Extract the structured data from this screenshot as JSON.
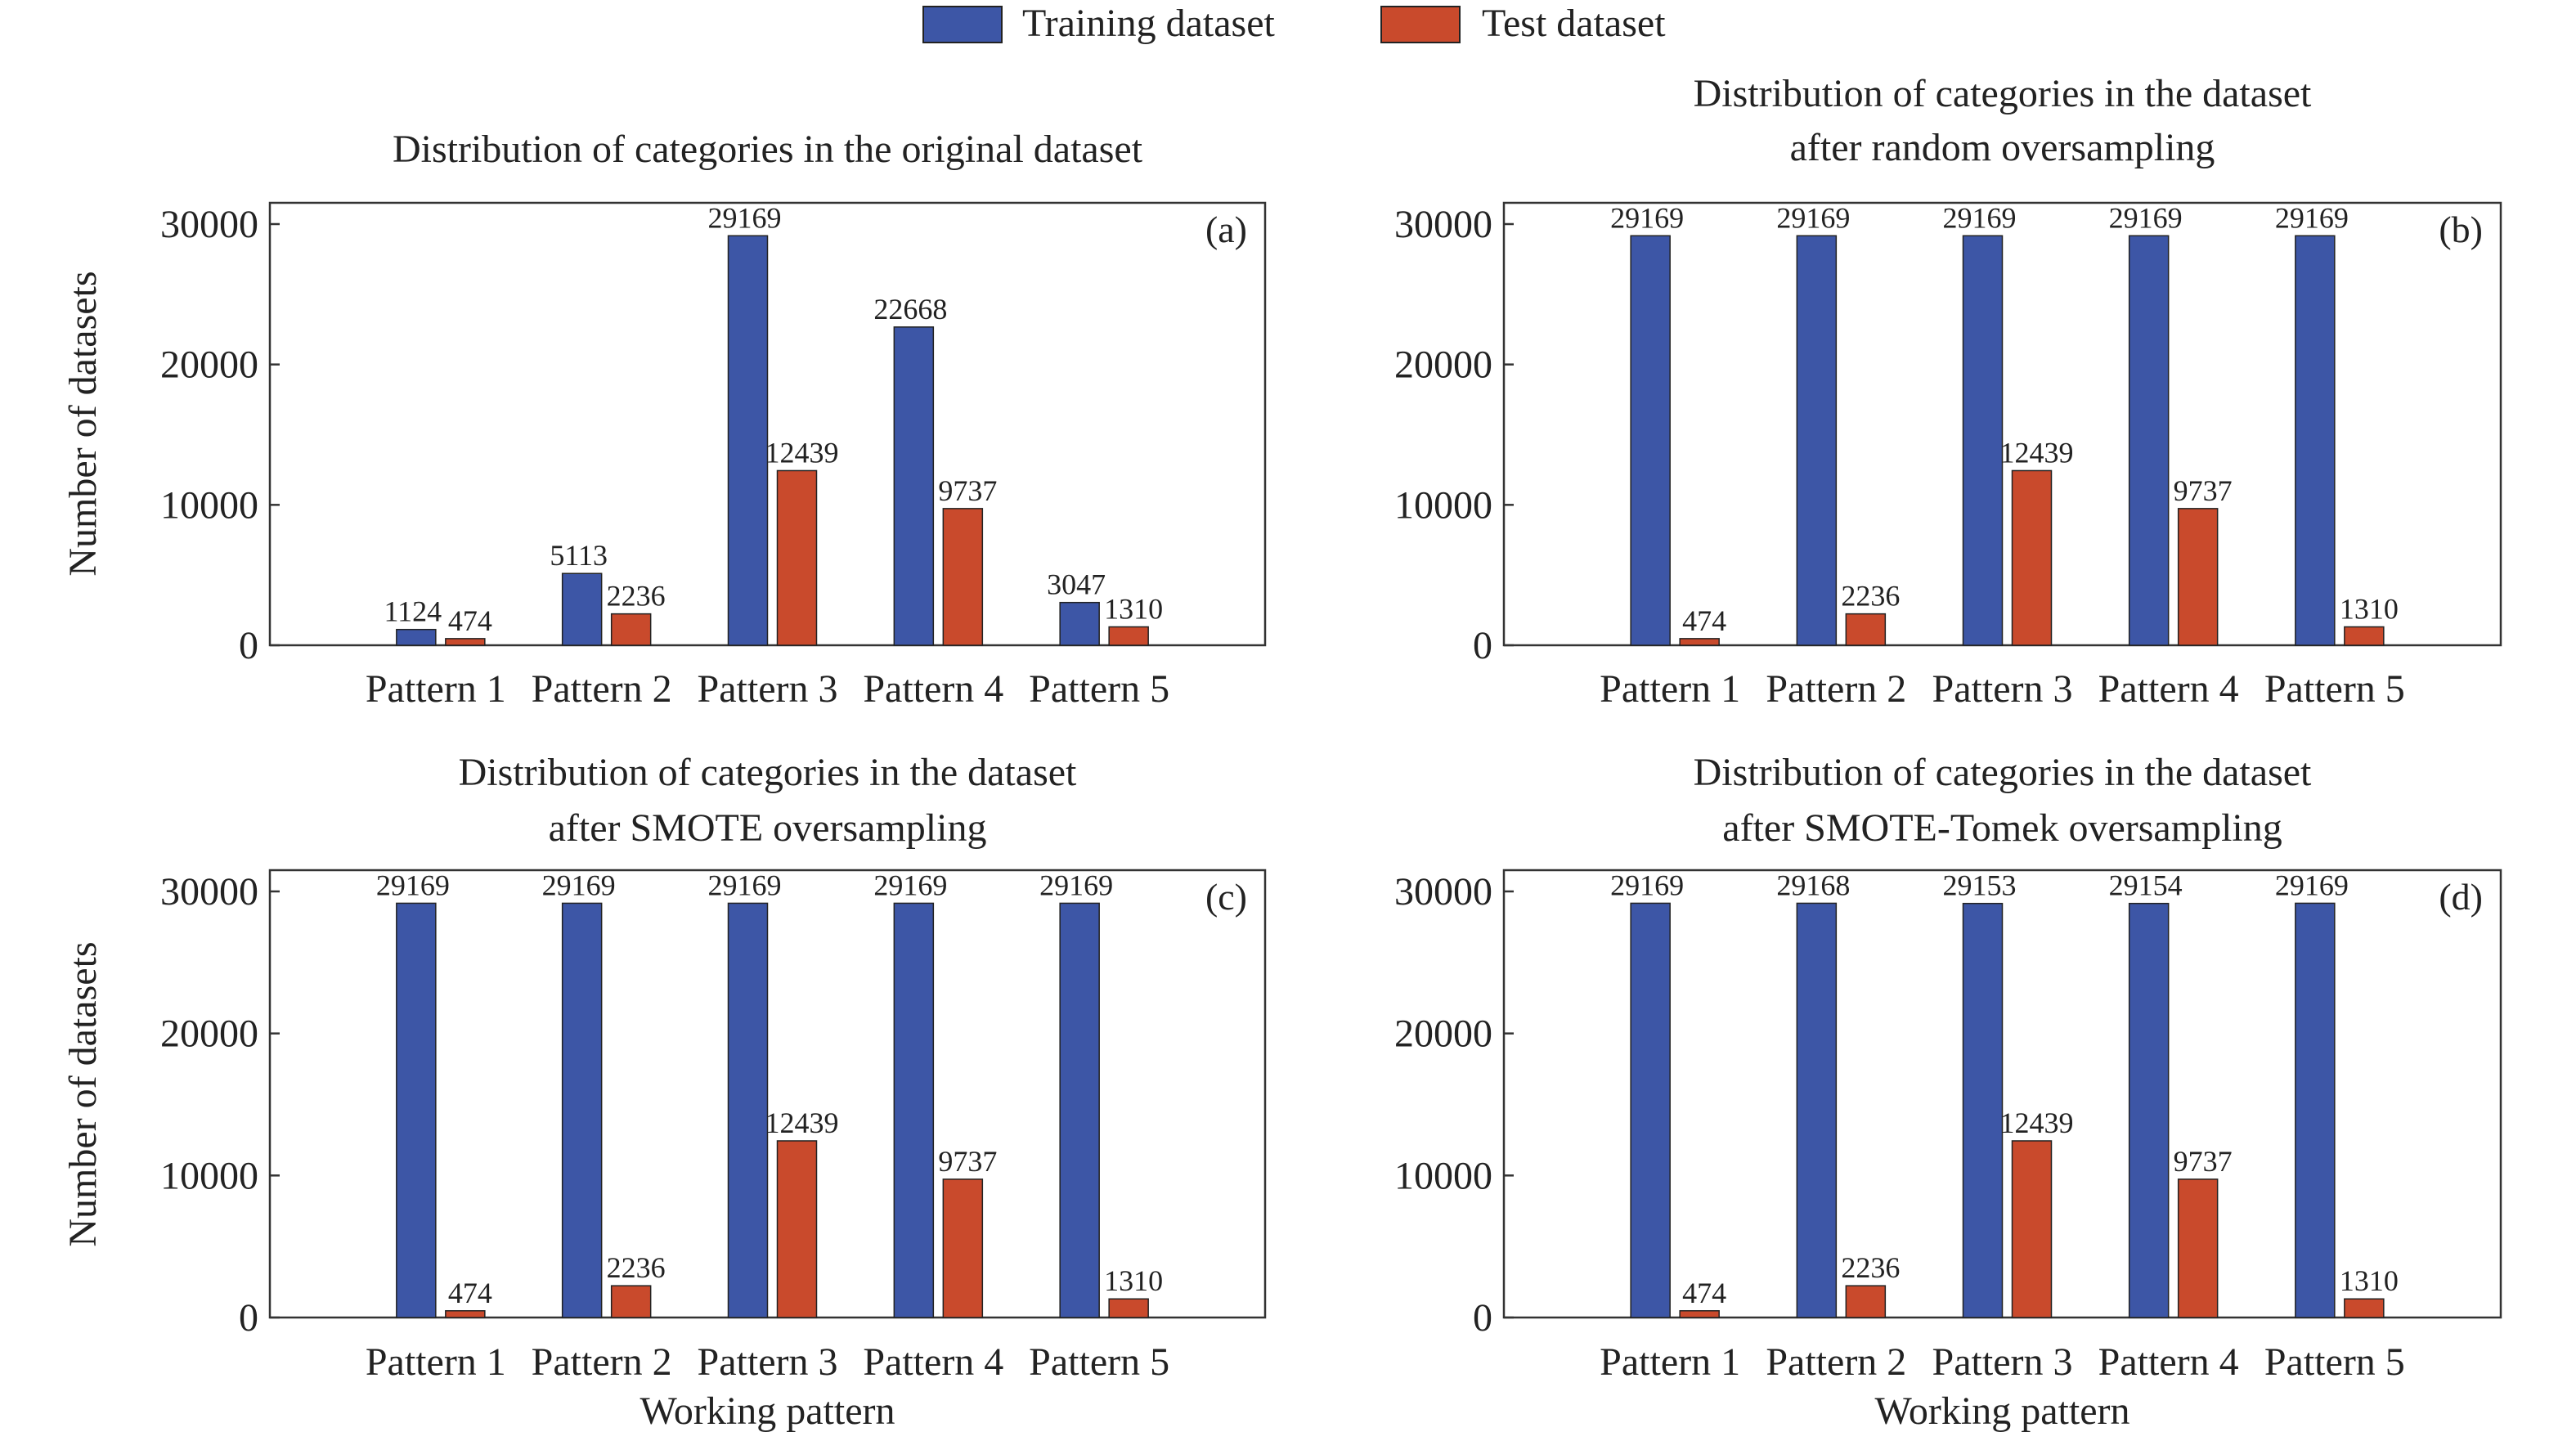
{
  "colors": {
    "training": "#3d56a6",
    "test": "#c94a2c",
    "axis": "#333333"
  },
  "chart_data": [
    {
      "type": "bar",
      "panel": "(a)",
      "title": [
        "Distribution of categories in the original dataset"
      ],
      "categories": [
        "Pattern 1",
        "Pattern 2",
        "Pattern 3",
        "Pattern 4",
        "Pattern 5"
      ],
      "series": [
        {
          "name": "Training dataset",
          "values": [
            1124,
            5113,
            29169,
            22668,
            3047
          ]
        },
        {
          "name": "Test dataset",
          "values": [
            474,
            2236,
            12439,
            9737,
            1310
          ]
        }
      ],
      "xlabel": "",
      "ylabel": "Number of datasets",
      "ylim": [
        0,
        30000
      ],
      "yticks": [
        0,
        10000,
        20000,
        30000
      ]
    },
    {
      "type": "bar",
      "panel": "(b)",
      "title": [
        "Distribution of categories in the dataset",
        "after random oversampling"
      ],
      "categories": [
        "Pattern 1",
        "Pattern 2",
        "Pattern 3",
        "Pattern 4",
        "Pattern 5"
      ],
      "series": [
        {
          "name": "Training dataset",
          "values": [
            29169,
            29169,
            29169,
            29169,
            29169
          ]
        },
        {
          "name": "Test dataset",
          "values": [
            474,
            2236,
            12439,
            9737,
            1310
          ]
        }
      ],
      "xlabel": "",
      "ylabel": "",
      "ylim": [
        0,
        30000
      ],
      "yticks": [
        0,
        10000,
        20000,
        30000
      ]
    },
    {
      "type": "bar",
      "panel": "(c)",
      "title": [
        "Distribution of categories in the dataset",
        "after SMOTE oversampling"
      ],
      "categories": [
        "Pattern 1",
        "Pattern 2",
        "Pattern 3",
        "Pattern 4",
        "Pattern 5"
      ],
      "series": [
        {
          "name": "Training dataset",
          "values": [
            29169,
            29169,
            29169,
            29169,
            29169
          ]
        },
        {
          "name": "Test dataset",
          "values": [
            474,
            2236,
            12439,
            9737,
            1310
          ]
        }
      ],
      "xlabel": "Working pattern",
      "ylabel": "Number of datasets",
      "ylim": [
        0,
        30000
      ],
      "yticks": [
        0,
        10000,
        20000,
        30000
      ]
    },
    {
      "type": "bar",
      "panel": "(d)",
      "title": [
        "Distribution of categories in the dataset",
        "after SMOTE-Tomek oversampling"
      ],
      "categories": [
        "Pattern 1",
        "Pattern 2",
        "Pattern 3",
        "Pattern 4",
        "Pattern 5"
      ],
      "series": [
        {
          "name": "Training dataset",
          "values": [
            29169,
            29168,
            29153,
            29154,
            29169
          ]
        },
        {
          "name": "Test dataset",
          "values": [
            474,
            2236,
            12439,
            9737,
            1310
          ]
        }
      ],
      "xlabel": "Working pattern",
      "ylabel": "",
      "ylim": [
        0,
        30000
      ],
      "yticks": [
        0,
        10000,
        20000,
        30000
      ]
    }
  ],
  "legend": {
    "placement": "top-center",
    "items": [
      {
        "label": "Training dataset",
        "color": "#3d56a6"
      },
      {
        "label": "Test dataset",
        "color": "#c94a2c"
      }
    ]
  }
}
